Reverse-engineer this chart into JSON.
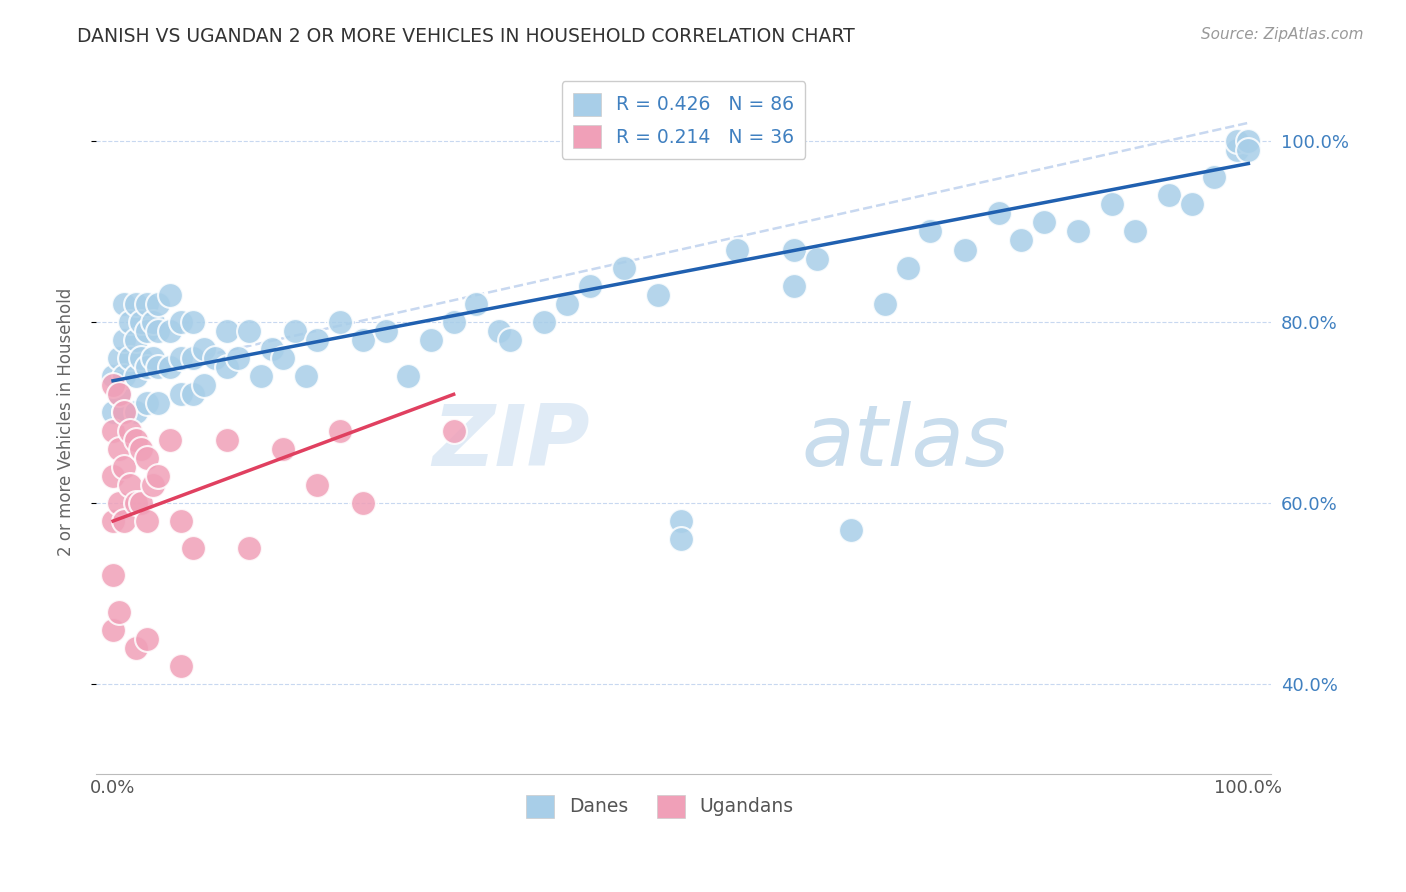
{
  "title": "DANISH VS UGANDAN 2 OR MORE VEHICLES IN HOUSEHOLD CORRELATION CHART",
  "source": "Source: ZipAtlas.com",
  "ylabel": "2 or more Vehicles in Household",
  "watermark_zip": "ZIP",
  "watermark_atlas": "atlas",
  "legend_blue_r": "R = 0.426",
  "legend_blue_n": "N = 86",
  "legend_pink_r": "R = 0.214",
  "legend_pink_n": "N = 36",
  "blue_color": "#A8CEE8",
  "pink_color": "#F0A0B8",
  "blue_line_color": "#2060B0",
  "pink_line_color": "#E04060",
  "dashed_line_color": "#C8D8F0",
  "grid_color": "#C8D8F0",
  "right_tick_color": "#4080C0",
  "ylim_min": 0.3,
  "ylim_max": 1.08,
  "xlim_min": -0.015,
  "xlim_max": 1.02,
  "ytick_vals": [
    0.4,
    0.6,
    0.8,
    1.0
  ],
  "ytick_labels": [
    "40.0%",
    "60.0%",
    "80.0%",
    "100.0%"
  ],
  "danish_x": [
    0.0,
    0.0,
    0.005,
    0.005,
    0.01,
    0.01,
    0.01,
    0.01,
    0.015,
    0.015,
    0.02,
    0.02,
    0.02,
    0.02,
    0.025,
    0.025,
    0.03,
    0.03,
    0.03,
    0.03,
    0.035,
    0.035,
    0.04,
    0.04,
    0.04,
    0.04,
    0.05,
    0.05,
    0.05,
    0.06,
    0.06,
    0.06,
    0.07,
    0.07,
    0.07,
    0.08,
    0.08,
    0.09,
    0.1,
    0.1,
    0.11,
    0.12,
    0.13,
    0.14,
    0.15,
    0.16,
    0.17,
    0.18,
    0.2,
    0.22,
    0.24,
    0.26,
    0.28,
    0.3,
    0.32,
    0.34,
    0.35,
    0.38,
    0.4,
    0.42,
    0.45,
    0.48,
    0.5,
    0.55,
    0.6,
    0.6,
    0.62,
    0.65,
    0.68,
    0.7,
    0.72,
    0.75,
    0.78,
    0.8,
    0.82,
    0.85,
    0.88,
    0.9,
    0.93,
    0.95,
    0.97,
    0.99,
    0.99,
    1.0,
    1.0,
    0.5
  ],
  "danish_y": [
    0.74,
    0.7,
    0.76,
    0.72,
    0.82,
    0.78,
    0.74,
    0.7,
    0.8,
    0.76,
    0.82,
    0.78,
    0.74,
    0.7,
    0.8,
    0.76,
    0.82,
    0.79,
    0.75,
    0.71,
    0.8,
    0.76,
    0.82,
    0.79,
    0.75,
    0.71,
    0.83,
    0.79,
    0.75,
    0.8,
    0.76,
    0.72,
    0.8,
    0.76,
    0.72,
    0.77,
    0.73,
    0.76,
    0.79,
    0.75,
    0.76,
    0.79,
    0.74,
    0.77,
    0.76,
    0.79,
    0.74,
    0.78,
    0.8,
    0.78,
    0.79,
    0.74,
    0.78,
    0.8,
    0.82,
    0.79,
    0.78,
    0.8,
    0.82,
    0.84,
    0.86,
    0.83,
    0.58,
    0.88,
    0.88,
    0.84,
    0.87,
    0.57,
    0.82,
    0.86,
    0.9,
    0.88,
    0.92,
    0.89,
    0.91,
    0.9,
    0.93,
    0.9,
    0.94,
    0.93,
    0.96,
    0.99,
    1.0,
    1.0,
    0.99,
    0.56
  ],
  "ugandan_x": [
    0.0,
    0.0,
    0.0,
    0.0,
    0.0,
    0.0,
    0.005,
    0.005,
    0.005,
    0.01,
    0.01,
    0.01,
    0.015,
    0.015,
    0.02,
    0.02,
    0.025,
    0.025,
    0.03,
    0.03,
    0.035,
    0.04,
    0.05,
    0.06,
    0.07,
    0.1,
    0.12,
    0.15,
    0.18,
    0.2,
    0.22,
    0.3,
    0.06,
    0.02,
    0.005,
    0.03
  ],
  "ugandan_y": [
    0.73,
    0.68,
    0.63,
    0.58,
    0.52,
    0.46,
    0.72,
    0.66,
    0.6,
    0.7,
    0.64,
    0.58,
    0.68,
    0.62,
    0.67,
    0.6,
    0.66,
    0.6,
    0.65,
    0.58,
    0.62,
    0.63,
    0.67,
    0.58,
    0.55,
    0.67,
    0.55,
    0.66,
    0.62,
    0.68,
    0.6,
    0.68,
    0.42,
    0.44,
    0.48,
    0.45
  ],
  "blue_trend_x0": 0.0,
  "blue_trend_x1": 1.0,
  "blue_trend_y0": 0.735,
  "blue_trend_y1": 0.975,
  "pink_trend_x0": 0.0,
  "pink_trend_x1": 0.3,
  "pink_trend_y0": 0.58,
  "pink_trend_y1": 0.72,
  "dash_trend_x0": 0.0,
  "dash_trend_x1": 1.0,
  "dash_trend_y0": 0.74,
  "dash_trend_y1": 1.02
}
